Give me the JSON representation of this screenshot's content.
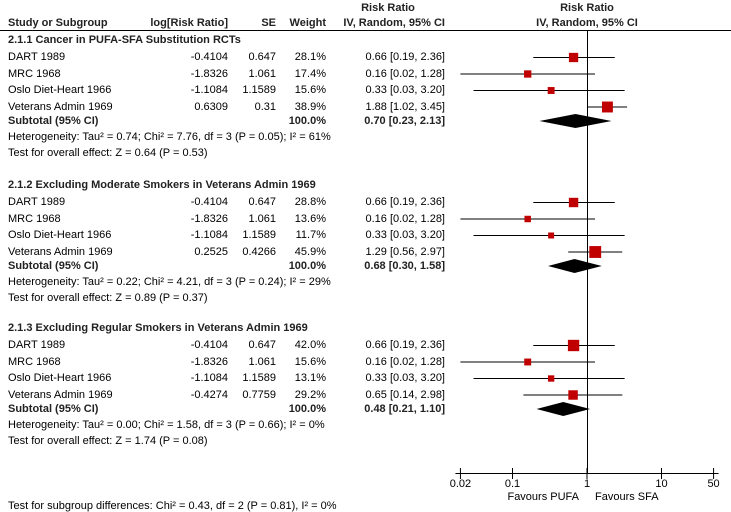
{
  "chart_data": {
    "type": "forest",
    "columns": {
      "study": "Study or Subgroup",
      "logrr": "log[Risk Ratio]",
      "se": "SE",
      "weight": "Weight",
      "ci_title": "Risk Ratio",
      "ci_sub": "IV, Random, 95% CI",
      "plot_title": "Risk Ratio",
      "plot_sub": "IV, Random, 95% CI"
    },
    "axis": {
      "scale": "log",
      "range": [
        0.02,
        50
      ],
      "ticks": [
        "0.02",
        "0.1",
        "1",
        "10",
        "50"
      ],
      "left_label": "Favours PUFA",
      "right_label": "Favours SFA"
    },
    "colors": {
      "marker": "#c00000",
      "diamond": "#000000",
      "line": "#000000"
    },
    "groups": [
      {
        "title": "2.1.1 Cancer in PUFA-SFA Substitution RCTs",
        "studies": [
          {
            "name": "DART 1989",
            "logrr": "-0.4104",
            "se": "0.647",
            "weight": "28.1%",
            "ci": "0.66 [0.19, 2.36]",
            "rr": 0.66,
            "lo": 0.19,
            "hi": 2.36,
            "w": 28.1
          },
          {
            "name": "MRC 1968",
            "logrr": "-1.8326",
            "se": "1.061",
            "weight": "17.4%",
            "ci": "0.16 [0.02, 1.28]",
            "rr": 0.16,
            "lo": 0.02,
            "hi": 1.28,
            "w": 17.4
          },
          {
            "name": "Oslo Diet-Heart 1966",
            "logrr": "-1.1084",
            "se": "1.1589",
            "weight": "15.6%",
            "ci": "0.33 [0.03, 3.20]",
            "rr": 0.33,
            "lo": 0.03,
            "hi": 3.2,
            "w": 15.6
          },
          {
            "name": "Veterans Admin 1969",
            "logrr": "0.6309",
            "se": "0.31",
            "weight": "38.9%",
            "ci": "1.88 [1.02, 3.45]",
            "rr": 1.88,
            "lo": 1.02,
            "hi": 3.45,
            "w": 38.9
          }
        ],
        "subtotal": {
          "label": "Subtotal (95% CI)",
          "weight": "100.0%",
          "ci": "0.70 [0.23, 2.13]",
          "rr": 0.7,
          "lo": 0.23,
          "hi": 2.13
        },
        "heterogeneity": "Heterogeneity: Tau² = 0.74; Chi² = 7.76, df = 3 (P = 0.05); I² = 61%",
        "overall": "Test for overall effect: Z = 0.64 (P = 0.53)"
      },
      {
        "title": "2.1.2 Excluding Moderate Smokers in Veterans Admin 1969",
        "studies": [
          {
            "name": "DART 1989",
            "logrr": "-0.4104",
            "se": "0.647",
            "weight": "28.8%",
            "ci": "0.66 [0.19, 2.36]",
            "rr": 0.66,
            "lo": 0.19,
            "hi": 2.36,
            "w": 28.8
          },
          {
            "name": "MRC 1968",
            "logrr": "-1.8326",
            "se": "1.061",
            "weight": "13.6%",
            "ci": "0.16 [0.02, 1.28]",
            "rr": 0.16,
            "lo": 0.02,
            "hi": 1.28,
            "w": 13.6
          },
          {
            "name": "Oslo Diet-Heart 1966",
            "logrr": "-1.1084",
            "se": "1.1589",
            "weight": "11.7%",
            "ci": "0.33 [0.03, 3.20]",
            "rr": 0.33,
            "lo": 0.03,
            "hi": 3.2,
            "w": 11.7
          },
          {
            "name": "Veterans Admin 1969",
            "logrr": "0.2525",
            "se": "0.4266",
            "weight": "45.9%",
            "ci": "1.29 [0.56, 2.97]",
            "rr": 1.29,
            "lo": 0.56,
            "hi": 2.97,
            "w": 45.9
          }
        ],
        "subtotal": {
          "label": "Subtotal (95% CI)",
          "weight": "100.0%",
          "ci": "0.68 [0.30, 1.58]",
          "rr": 0.68,
          "lo": 0.3,
          "hi": 1.58
        },
        "heterogeneity": "Heterogeneity: Tau² = 0.22; Chi² = 4.21, df = 3 (P = 0.24); I² = 29%",
        "overall": "Test for overall effect: Z = 0.89 (P = 0.37)"
      },
      {
        "title": "2.1.3 Excluding Regular Smokers in Veterans Admin 1969",
        "studies": [
          {
            "name": "DART 1989",
            "logrr": "-0.4104",
            "se": "0.647",
            "weight": "42.0%",
            "ci": "0.66 [0.19, 2.36]",
            "rr": 0.66,
            "lo": 0.19,
            "hi": 2.36,
            "w": 42.0
          },
          {
            "name": "MRC 1968",
            "logrr": "-1.8326",
            "se": "1.061",
            "weight": "15.6%",
            "ci": "0.16 [0.02, 1.28]",
            "rr": 0.16,
            "lo": 0.02,
            "hi": 1.28,
            "w": 15.6
          },
          {
            "name": "Oslo Diet-Heart 1966",
            "logrr": "-1.1084",
            "se": "1.1589",
            "weight": "13.1%",
            "ci": "0.33 [0.03, 3.20]",
            "rr": 0.33,
            "lo": 0.03,
            "hi": 3.2,
            "w": 13.1
          },
          {
            "name": "Veterans Admin 1969",
            "logrr": "-0.4274",
            "se": "0.7759",
            "weight": "29.2%",
            "ci": "0.65 [0.14, 2.98]",
            "rr": 0.65,
            "lo": 0.14,
            "hi": 2.98,
            "w": 29.2
          }
        ],
        "subtotal": {
          "label": "Subtotal (95% CI)",
          "weight": "100.0%",
          "ci": "0.48 [0.21, 1.10]",
          "rr": 0.48,
          "lo": 0.21,
          "hi": 1.1
        },
        "heterogeneity": "Heterogeneity: Tau² = 0.00; Chi² = 1.58, df = 3 (P = 0.66); I² = 0%",
        "overall": "Test for overall effect: Z = 1.74 (P = 0.08)"
      }
    ],
    "subgroup_test": "Test for subgroup differences: Chi² = 0.43, df = 2 (P = 0.81), I² = 0%"
  }
}
